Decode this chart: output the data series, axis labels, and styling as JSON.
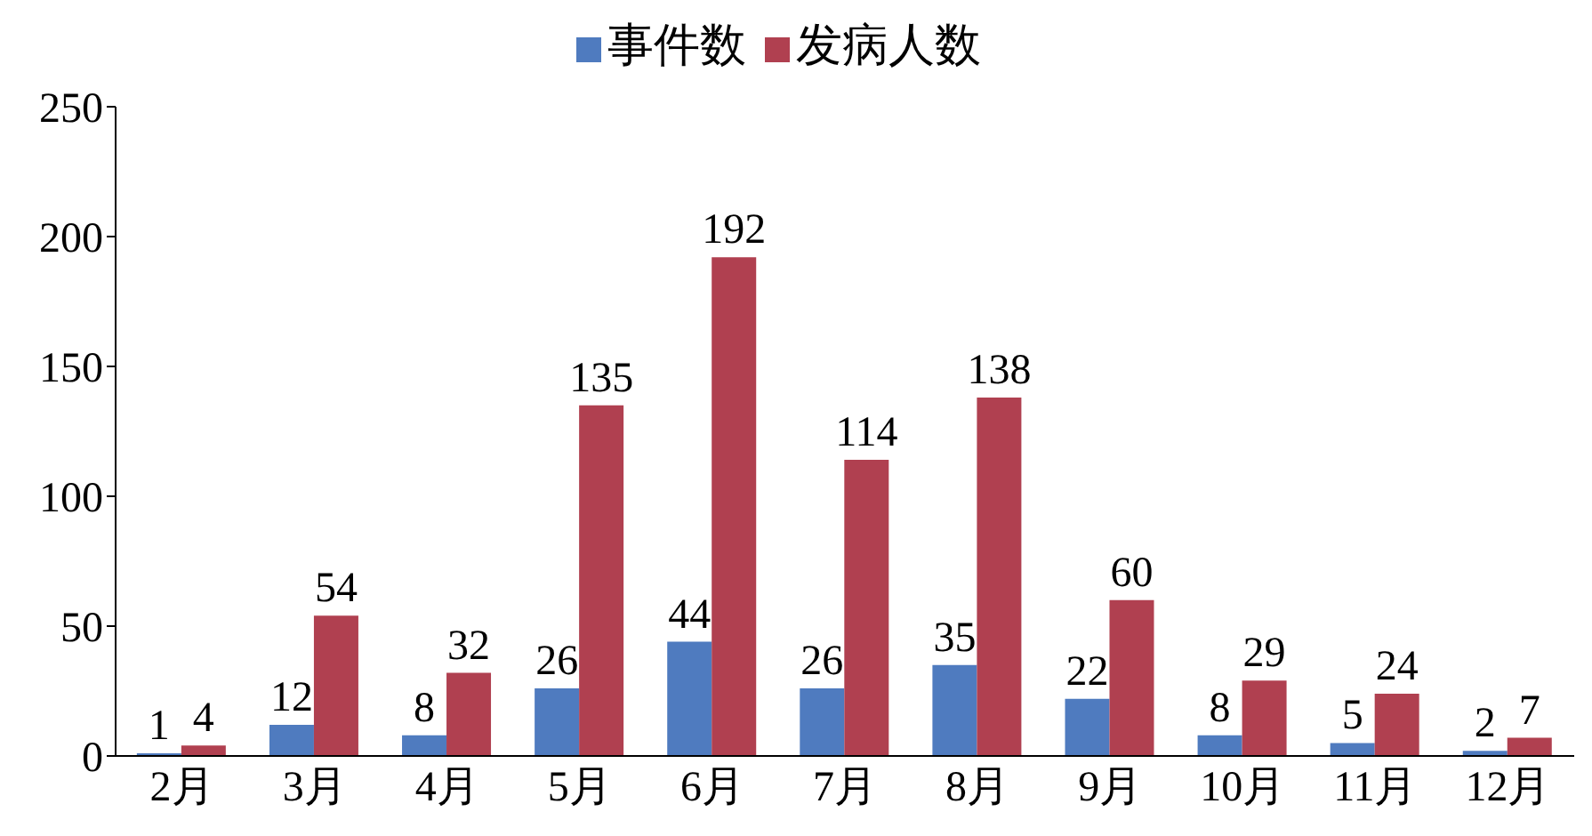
{
  "chart_data": {
    "type": "bar",
    "categories": [
      "2月",
      "3月",
      "4月",
      "5月",
      "6月",
      "7月",
      "8月",
      "9月",
      "10月",
      "11月",
      "12月"
    ],
    "series": [
      {
        "name": "事件数",
        "color": "#4f7bbf",
        "values": [
          1,
          12,
          8,
          26,
          44,
          26,
          35,
          22,
          8,
          5,
          2
        ]
      },
      {
        "name": "发病人数",
        "color": "#b04050",
        "values": [
          4,
          54,
          32,
          135,
          192,
          114,
          138,
          60,
          29,
          24,
          7
        ]
      }
    ],
    "ylim": [
      0,
      250
    ],
    "yticks": [
      0,
      50,
      100,
      150,
      200,
      250
    ],
    "data_labels": true,
    "legend": "top",
    "grid": false
  }
}
